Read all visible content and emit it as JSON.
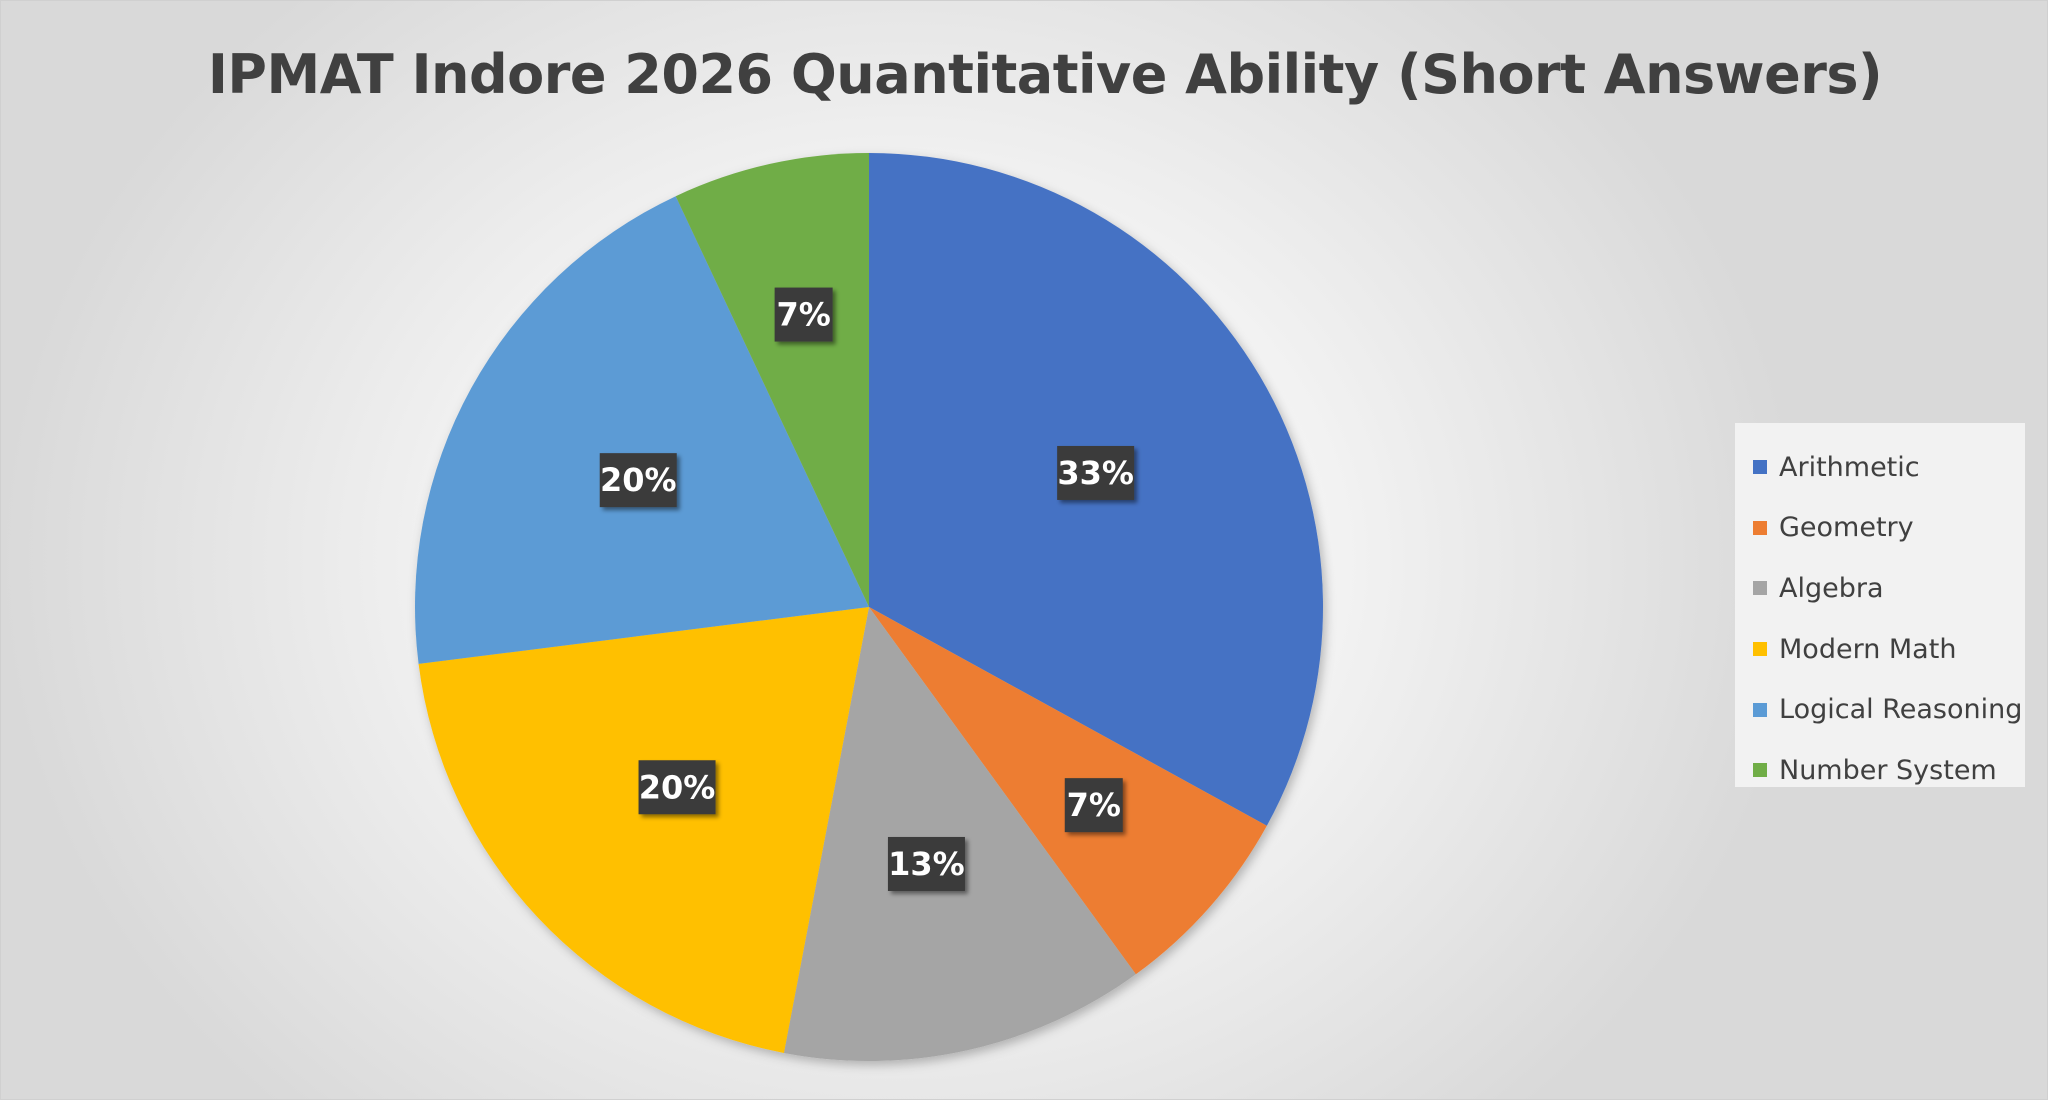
{
  "chart_data": {
    "type": "pie",
    "title": "IPMAT Indore 2026 Quantitative Ability (Short Answers)",
    "categories": [
      "Arithmetic",
      "Geometry",
      "Algebra",
      "Modern Math",
      "Logical Reasoning",
      "Number System"
    ],
    "values": [
      33,
      7,
      13,
      20,
      20,
      7
    ],
    "data_labels": [
      "33%",
      "7%",
      "13%",
      "20%",
      "20%",
      "7%"
    ],
    "colors": [
      "#4472C4",
      "#ED7D31",
      "#A5A5A5",
      "#FFC000",
      "#5B9BD5",
      "#70AD47"
    ],
    "legend_position": "right",
    "start_angle": "top",
    "direction": "clockwise"
  }
}
